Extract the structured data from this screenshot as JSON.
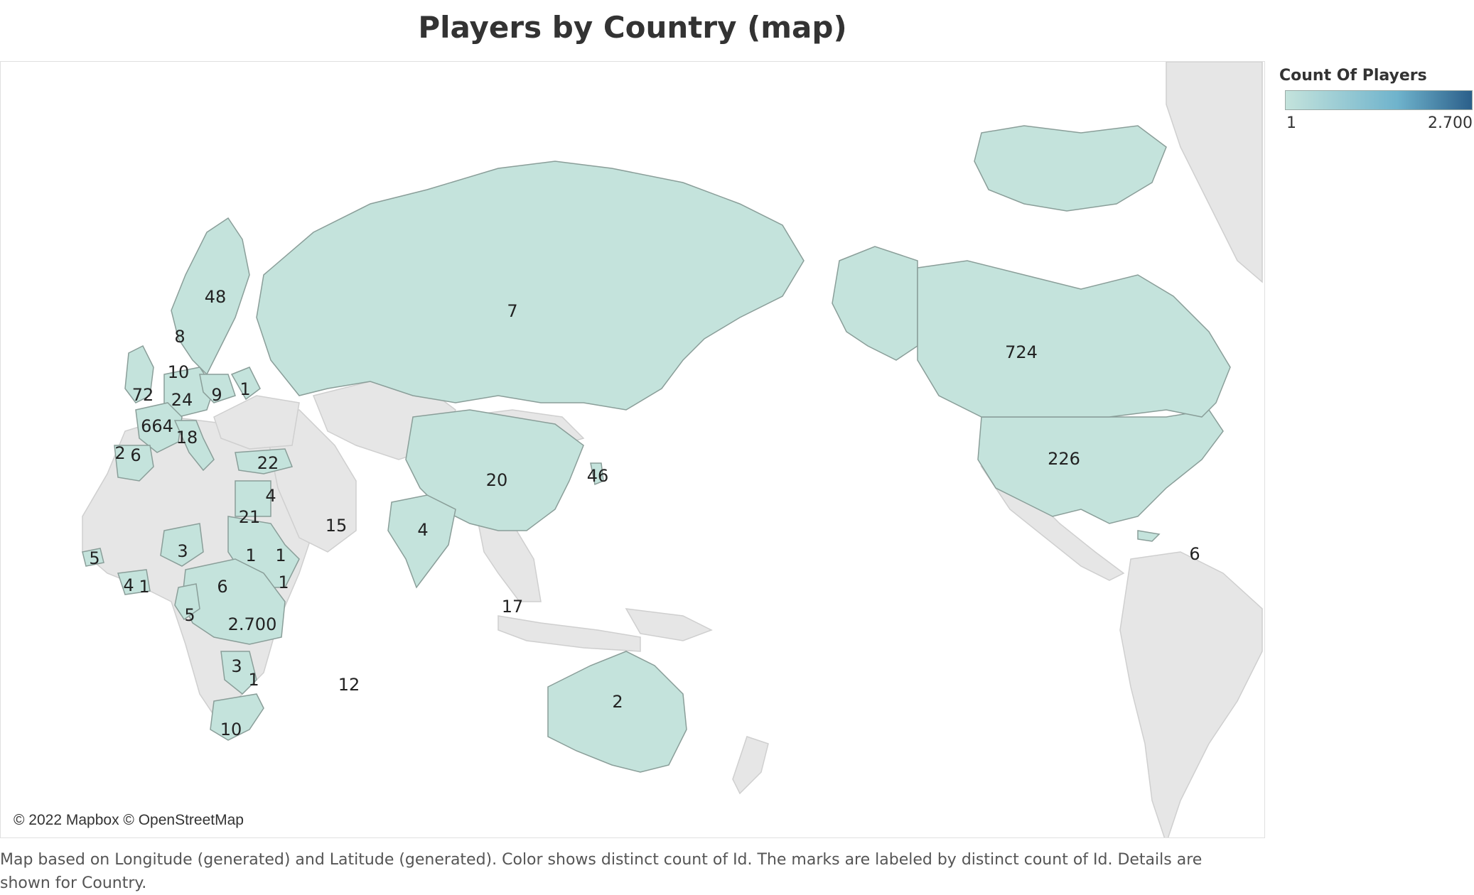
{
  "title": "Players by Country (map)",
  "attribution": "© 2022 Mapbox © OpenStreetMap",
  "caption": "Map based on Longitude (generated) and Latitude (generated).  Color shows distinct count of Id.  The marks are labeled by distinct count of Id.  Details are shown for Country.",
  "legend": {
    "title": "Count Of Players",
    "min_label": "1",
    "max_label": "2.700",
    "min_color": "#c4e3dc",
    "max_color": "#2b5f8a"
  },
  "colors": {
    "land_no_data": "#e6e6e6",
    "land_low": "#c4e3dc",
    "land_mid": "#8fc4cf",
    "land_high": "#5aa6bf",
    "ocean": "#ffffff"
  },
  "chart_data": {
    "type": "map",
    "measure": "Count Of Players",
    "labels": [
      "48",
      "8",
      "10",
      "72",
      "24",
      "9",
      "1",
      "664",
      "18",
      "2",
      "6",
      "22",
      "7",
      "20",
      "46",
      "4",
      "21",
      "15",
      "4",
      "5",
      "3",
      "1",
      "1",
      "4",
      "1",
      "6",
      "1",
      "5",
      "2.700",
      "3",
      "1",
      "10",
      "12",
      "17",
      "2",
      "724",
      "226",
      "6"
    ]
  }
}
